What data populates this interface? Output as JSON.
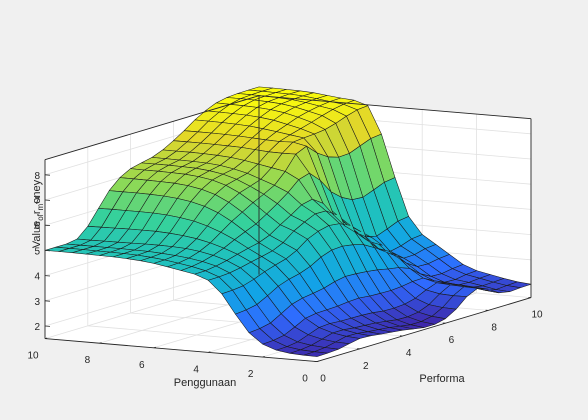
{
  "window": {
    "background": "#f0f0f0",
    "axes_background": "#ffffff"
  },
  "chart_data": {
    "type": "surface",
    "title": "",
    "xlabel": "Performa",
    "ylabel": "Penggunaan",
    "zlabel_base": "Value",
    "zlabel_sub1": "of",
    "zlabel_mid": "r",
    "zlabel_sub2": "m",
    "zlabel_end": "oney",
    "xlim": [
      0,
      10
    ],
    "ylim": [
      0,
      10
    ],
    "zlim": [
      1.5,
      8.6
    ],
    "x_ticks": [
      0,
      2,
      4,
      6,
      8,
      10
    ],
    "y_ticks": [
      0,
      2,
      4,
      6,
      8,
      10
    ],
    "z_ticks": [
      2,
      3,
      4,
      5,
      6,
      7,
      8
    ],
    "x_tick_labels": [
      "0",
      "2",
      "4",
      "6",
      "8",
      "10"
    ],
    "y_tick_labels": [
      "0",
      "2",
      "4",
      "6",
      "8",
      "10"
    ],
    "z_tick_labels": [
      "2",
      "3",
      "4",
      "5",
      "6",
      "7",
      "8"
    ],
    "grid": true,
    "colormap": "parula",
    "colormap_colors": [
      "#3e26a8",
      "#2f6bff",
      "#12a4e6",
      "#1ec0c0",
      "#37d29a",
      "#8ed955",
      "#e1d62a",
      "#f9fb0e"
    ],
    "x": [
      0,
      0.5,
      1,
      1.5,
      2,
      2.5,
      3,
      3.5,
      4,
      4.5,
      5,
      5.5,
      6,
      6.5,
      7,
      7.5,
      8,
      8.5,
      9,
      9.5,
      10
    ],
    "y": [
      0,
      0.5,
      1,
      1.5,
      2,
      2.5,
      3,
      3.5,
      4,
      4.5,
      5,
      5.5,
      6,
      6.5,
      7,
      7.5,
      8,
      8.5,
      9,
      9.5,
      10
    ],
    "z_description": "z[i][j] at x[i], y[j]",
    "z": [
      [
        1.7,
        1.71,
        1.74,
        1.82,
        2.01,
        2.42,
        3.11,
        3.87,
        4.36,
        4.56,
        4.66,
        4.76,
        4.85,
        4.91,
        4.95,
        4.97,
        4.98,
        4.99,
        5.0,
        5.0,
        5.0
      ],
      [
        1.71,
        1.72,
        1.75,
        1.83,
        2.03,
        2.46,
        3.15,
        3.89,
        4.37,
        4.57,
        4.69,
        4.78,
        4.86,
        4.92,
        4.96,
        4.98,
        4.99,
        4.99,
        5.0,
        5.0,
        5.0
      ],
      [
        1.74,
        1.76,
        1.8,
        1.89,
        2.11,
        2.55,
        3.24,
        3.94,
        4.4,
        4.63,
        4.76,
        4.85,
        4.91,
        4.95,
        4.98,
        4.99,
        5.0,
        5.0,
        5.0,
        5.0,
        5.0
      ],
      [
        1.83,
        1.85,
        1.92,
        2.05,
        2.31,
        2.79,
        3.46,
        4.07,
        4.48,
        4.72,
        4.88,
        4.99,
        5.06,
        5.09,
        5.1,
        5.1,
        5.09,
        5.08,
        5.08,
        5.07,
        5.07
      ],
      [
        1.91,
        1.95,
        2.04,
        2.21,
        2.53,
        3.04,
        3.71,
        4.24,
        4.58,
        4.84,
        5.04,
        5.2,
        5.32,
        5.4,
        5.45,
        5.48,
        5.48,
        5.48,
        5.47,
        5.46,
        5.45
      ],
      [
        1.89,
        1.94,
        2.04,
        2.24,
        2.6,
        3.16,
        3.86,
        4.38,
        4.67,
        4.95,
        5.25,
        5.5,
        5.7,
        5.85,
        5.94,
        6.0,
        6.03,
        6.04,
        6.04,
        6.04,
        6.03
      ],
      [
        1.83,
        1.88,
        1.99,
        2.21,
        2.61,
        3.22,
        3.96,
        4.5,
        4.77,
        5.05,
        5.44,
        5.8,
        6.1,
        6.31,
        6.45,
        6.53,
        6.58,
        6.6,
        6.61,
        6.61,
        6.61
      ],
      [
        1.78,
        1.84,
        1.96,
        2.2,
        2.63,
        3.3,
        4.12,
        4.71,
        4.97,
        5.22,
        5.62,
        6.04,
        6.39,
        6.65,
        6.81,
        6.91,
        6.96,
        6.98,
        6.99,
        7.0,
        7.0
      ],
      [
        1.73,
        1.79,
        1.93,
        2.19,
        2.68,
        3.43,
        4.36,
        5.02,
        5.3,
        5.5,
        5.89,
        6.29,
        6.63,
        6.89,
        7.05,
        7.14,
        7.19,
        7.21,
        7.22,
        7.22,
        7.23
      ],
      [
        1.65,
        1.72,
        1.87,
        2.16,
        2.7,
        3.51,
        4.51,
        5.21,
        5.53,
        5.76,
        6.17,
        6.5,
        6.77,
        7.0,
        7.16,
        7.25,
        7.3,
        7.32,
        7.33,
        7.33,
        7.33
      ],
      [
        1.58,
        1.65,
        1.8,
        2.1,
        2.65,
        3.49,
        4.54,
        5.31,
        5.73,
        6.04,
        6.49,
        6.73,
        6.92,
        7.11,
        7.24,
        7.33,
        7.38,
        7.4,
        7.41,
        7.42,
        7.42
      ],
      [
        1.58,
        1.65,
        1.79,
        2.09,
        2.63,
        3.45,
        4.47,
        5.26,
        5.72,
        6.14,
        6.87,
        7.15,
        7.25,
        7.35,
        7.45,
        7.52,
        7.56,
        7.58,
        7.59,
        7.59,
        7.59
      ],
      [
        1.68,
        1.73,
        1.85,
        2.12,
        2.62,
        3.39,
        4.34,
        5.06,
        5.44,
        5.85,
        7.0,
        7.71,
        7.7,
        7.71,
        7.75,
        7.79,
        7.81,
        7.82,
        7.83,
        7.83,
        7.83
      ],
      [
        1.93,
        1.95,
        2.02,
        2.23,
        2.65,
        3.3,
        4.1,
        4.69,
        4.92,
        5.25,
        6.59,
        7.9,
        8.01,
        7.99,
        8.01,
        8.04,
        8.07,
        8.09,
        8.1,
        8.1,
        8.1
      ],
      [
        2.3,
        2.29,
        2.32,
        2.43,
        2.72,
        3.23,
        3.87,
        4.33,
        4.46,
        4.71,
        6.01,
        7.5,
        8.05,
        8.13,
        8.21,
        8.28,
        8.34,
        8.37,
        8.39,
        8.4,
        8.4
      ],
      [
        2.5,
        2.52,
        2.55,
        2.59,
        2.73,
        3.07,
        3.55,
        3.89,
        4.0,
        4.32,
        5.66,
        7.22,
        8.08,
        8.25,
        8.37,
        8.49,
        8.56,
        8.6,
        8.62,
        8.63,
        8.64
      ],
      [
        2.34,
        2.38,
        2.42,
        2.44,
        2.5,
        2.73,
        3.1,
        3.39,
        3.55,
        4.01,
        5.44,
        7.08,
        8.13,
        8.37,
        8.53,
        8.66,
        8.74,
        8.78,
        8.8,
        8.81,
        8.82
      ],
      [
        2.07,
        2.12,
        2.2,
        2.25,
        2.31,
        2.5,
        2.84,
        3.13,
        3.35,
        3.91,
        5.41,
        7.1,
        8.25,
        8.51,
        8.64,
        8.76,
        8.84,
        8.88,
        8.9,
        8.91,
        8.91
      ],
      [
        1.99,
        2.03,
        2.13,
        2.22,
        2.29,
        2.48,
        2.82,
        3.14,
        3.44,
        4.07,
        5.57,
        7.27,
        8.41,
        8.63,
        8.72,
        8.81,
        8.88,
        8.91,
        8.93,
        8.94,
        8.94
      ],
      [
        2.02,
        2.06,
        2.15,
        2.26,
        2.36,
        2.55,
        2.9,
        3.25,
        3.59,
        4.25,
        5.75,
        7.44,
        8.53,
        8.71,
        8.77,
        8.84,
        8.9,
        8.93,
        8.94,
        8.95,
        8.95
      ],
      [
        2.03,
        2.08,
        2.17,
        2.28,
        2.39,
        2.59,
        2.94,
        3.29,
        3.64,
        4.31,
        5.81,
        7.49,
        8.57,
        8.74,
        8.78,
        8.84,
        8.9,
        8.93,
        8.94,
        8.95,
        8.95
      ]
    ]
  }
}
